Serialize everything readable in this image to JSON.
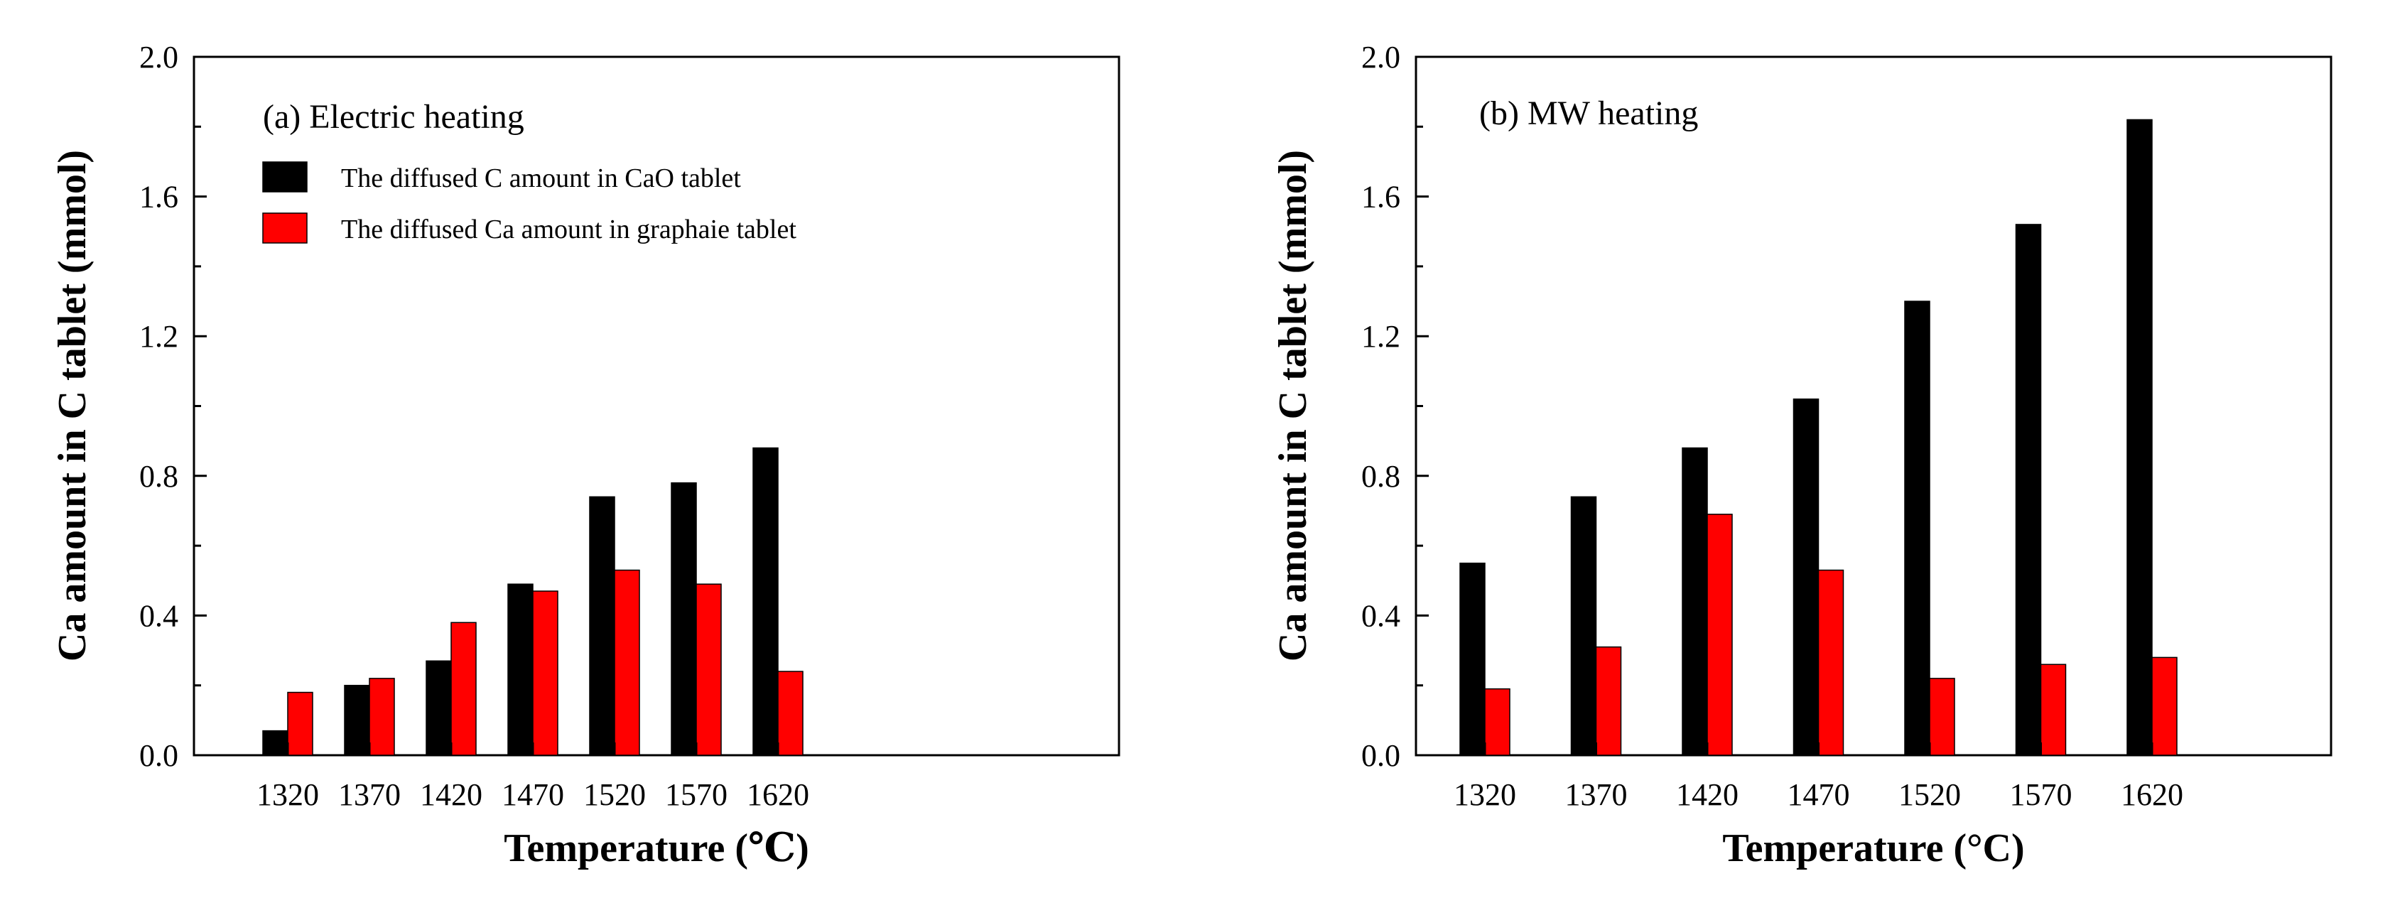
{
  "chart_data": [
    {
      "type": "bar",
      "title": "(a)  Electric heating",
      "xlabel": "Temperature (℃)",
      "ylabel": "Ca amount in C tablet (mmol)",
      "categories": [
        "1320",
        "1370",
        "1420",
        "1470",
        "1520",
        "1570",
        "1620"
      ],
      "ylim": [
        0,
        2.0
      ],
      "yticks": [
        "0.0",
        "0.4",
        "0.8",
        "1.2",
        "1.6",
        "2.0"
      ],
      "series": [
        {
          "name": "The diffused C amount in CaO tablet",
          "color": "#000000",
          "values": [
            0.07,
            0.2,
            0.27,
            0.49,
            0.74,
            0.78,
            0.88
          ]
        },
        {
          "name": "The diffused Ca amount in graphaie tablet",
          "color": "#ff0000",
          "values": [
            0.18,
            0.22,
            0.38,
            0.47,
            0.53,
            0.49,
            0.24
          ]
        }
      ],
      "legend": "top-left"
    },
    {
      "type": "bar",
      "title": "(b)  MW heating",
      "xlabel": "Temperature (°C)",
      "ylabel": "Ca amount in C tablet (mmol)",
      "categories": [
        "1320",
        "1370",
        "1420",
        "1470",
        "1520",
        "1570",
        "1620"
      ],
      "ylim": [
        0,
        2.0
      ],
      "yticks": [
        "0.0",
        "0.4",
        "0.8",
        "1.2",
        "1.6",
        "2.0"
      ],
      "series": [
        {
          "name": "The diffused C amount in CaO tablet",
          "color": "#000000",
          "values": [
            0.55,
            0.74,
            0.88,
            1.02,
            1.3,
            1.52,
            1.82
          ]
        },
        {
          "name": "The diffused Ca amount in graphaie tablet",
          "color": "#ff0000",
          "values": [
            0.19,
            0.31,
            0.69,
            0.53,
            0.22,
            0.26,
            0.28
          ]
        }
      ]
    }
  ]
}
